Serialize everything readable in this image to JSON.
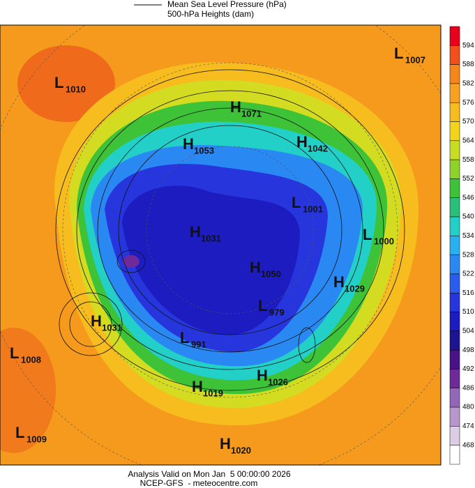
{
  "legend": {
    "line1": "Mean Sea Level Pressure (hPa)",
    "line2": "500-hPa Heights (dam)"
  },
  "centers": [
    {
      "kind": "L",
      "value": 1007
    },
    {
      "kind": "L",
      "value": 1010
    },
    {
      "kind": "H",
      "value": 1071
    },
    {
      "kind": "H",
      "value": 1053
    },
    {
      "kind": "H",
      "value": 1042
    },
    {
      "kind": "L",
      "value": 1001
    },
    {
      "kind": "H",
      "value": 1031
    },
    {
      "kind": "L",
      "value": 1000
    },
    {
      "kind": "H",
      "value": 1050
    },
    {
      "kind": "H",
      "value": 1029
    },
    {
      "kind": "L",
      "value": 979
    },
    {
      "kind": "H",
      "value": 1031
    },
    {
      "kind": "L",
      "value": 991
    },
    {
      "kind": "L",
      "value": 1008
    },
    {
      "kind": "H",
      "value": 1026
    },
    {
      "kind": "H",
      "value": 1019
    },
    {
      "kind": "L",
      "value": 1009
    },
    {
      "kind": "H",
      "value": 1020
    }
  ],
  "colorbar": {
    "ticks": [
      594,
      588,
      582,
      576,
      570,
      564,
      558,
      552,
      546,
      540,
      534,
      528,
      522,
      516,
      510,
      504,
      498,
      492,
      486,
      480,
      474,
      468
    ],
    "colors": [
      "#e8001c",
      "#f2501a",
      "#f5861c",
      "#f8a020",
      "#f7bd1e",
      "#f2d51a",
      "#c8dc22",
      "#8ed22a",
      "#3ec238",
      "#28c07a",
      "#22d0c8",
      "#28b0f0",
      "#2a88f2",
      "#2a5cf0",
      "#2636dc",
      "#1c1cc0",
      "#1c1490",
      "#4a1288",
      "#6e2a98",
      "#9466b8",
      "#b898cc",
      "#dccce4",
      "#ffffff"
    ]
  },
  "footer": {
    "line1": "Analysis Valid on Mon Jan  5 00:00:00 2026",
    "line2": "NCEP-GFS  - meteocentre.com"
  }
}
